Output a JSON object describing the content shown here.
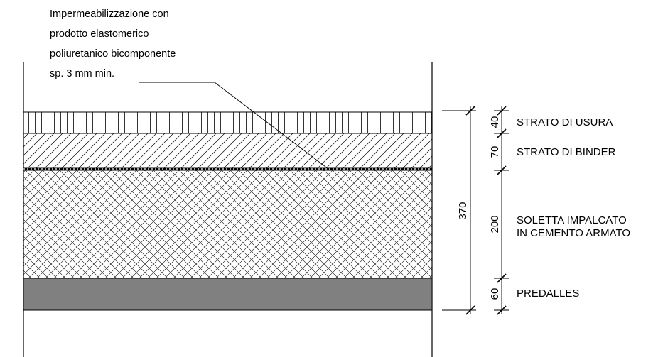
{
  "annotation": {
    "lines": [
      "Impermeabilizzazione con",
      "prodotto elastomerico",
      "poliuretanico bicomponente",
      "sp. 3 mm min."
    ]
  },
  "layers": [
    {
      "name": "STRATO DI USURA",
      "thickness": "40"
    },
    {
      "name": "STRATO DI BINDER",
      "thickness": "70"
    },
    {
      "name": "SOLETTA IMPALCATO",
      "name2": "IN CEMENTO ARMATO",
      "thickness": "200"
    },
    {
      "name": "PREDALLES",
      "thickness": "60"
    }
  ],
  "total_thickness": "370",
  "colors": {
    "line": "#000000",
    "predalles_fill": "#808080",
    "hatch": "#000000"
  }
}
